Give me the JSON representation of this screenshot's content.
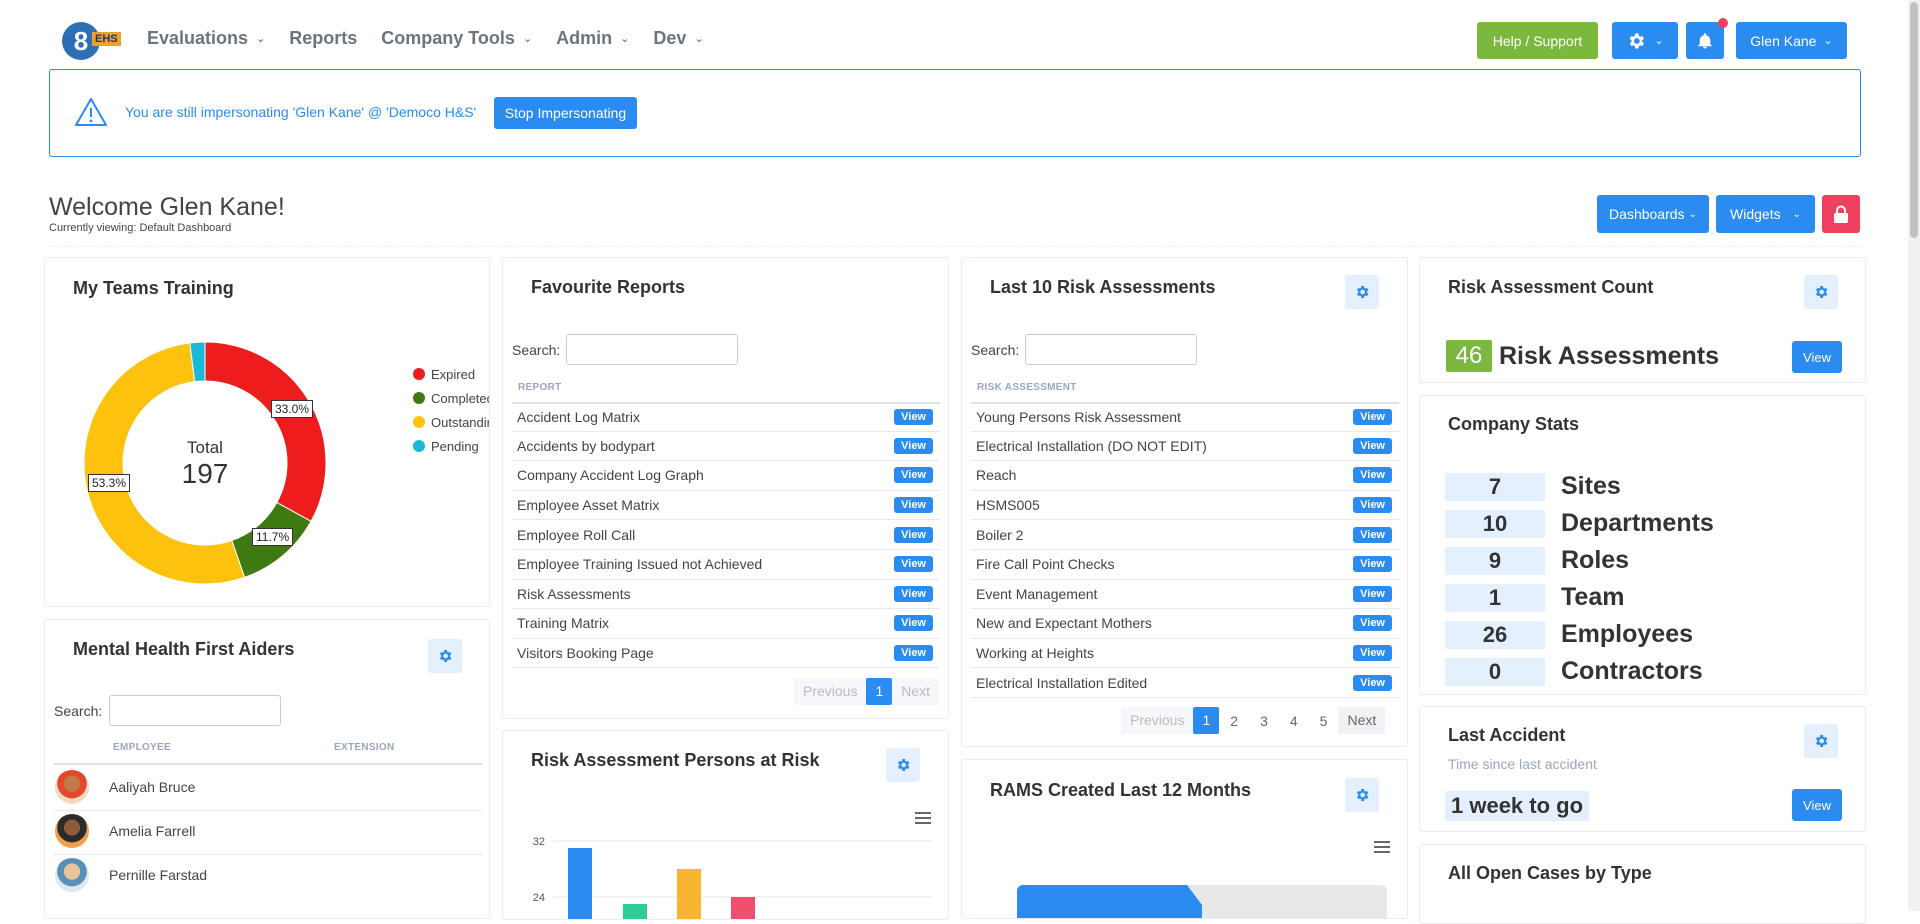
{
  "logo": {
    "number": "8",
    "tag": "EHS"
  },
  "nav": [
    {
      "label": "Evaluations",
      "has_menu": true
    },
    {
      "label": "Reports",
      "has_menu": false
    },
    {
      "label": "Company Tools",
      "has_menu": true
    },
    {
      "label": "Admin",
      "has_menu": true
    },
    {
      "label": "Dev",
      "has_menu": true
    }
  ],
  "header": {
    "help_label": "Help / Support",
    "user_label": "Glen Kane"
  },
  "alert": {
    "message": "You are still impersonating 'Glen Kane' @ 'Democo H&S'",
    "button": "Stop Impersonating"
  },
  "welcome": {
    "title": "Welcome Glen Kane!",
    "viewing": "Currently viewing: Default Dashboard"
  },
  "toolbar": {
    "dashboards": "Dashboards",
    "widgets": "Widgets"
  },
  "teams_training": {
    "title": "My Teams Training",
    "total_label": "Total",
    "total_value": "197",
    "legend": [
      "Expired",
      "Completed",
      "Outstanding",
      "Pending"
    ],
    "colors": [
      "#ee1c1c",
      "#3d7a12",
      "#fcc20d",
      "#1ab9d8"
    ],
    "shares": [
      33.0,
      11.7,
      53.3,
      2.0
    ],
    "labels": [
      "33.0%",
      "11.7%",
      "53.3%"
    ]
  },
  "favourite_reports": {
    "title": "Favourite Reports",
    "search_label": "Search:",
    "column": "REPORT",
    "rows": [
      "Accident Log Matrix",
      "Accidents by bodypart",
      "Company Accident Log Graph",
      "Employee Asset Matrix",
      "Employee Roll Call",
      "Employee Training Issued not Achieved",
      "Risk Assessments",
      "Training Matrix",
      "Visitors Booking Page"
    ],
    "view_label": "View",
    "pager": {
      "prev": "Previous",
      "pages": [
        "1"
      ],
      "next": "Next"
    }
  },
  "last_risk": {
    "title": "Last 10 Risk Assessments",
    "search_label": "Search:",
    "column": "RISK ASSESSMENT",
    "rows": [
      "Young Persons Risk Assessment",
      "Electrical Installation (DO NOT EDIT)",
      "Reach",
      "HSMS005",
      "Boiler 2",
      "Fire Call Point Checks",
      "Event Management",
      "New and Expectant Mothers",
      "Working at Heights",
      "Electrical Installation Edited"
    ],
    "view_label": "View",
    "pager": {
      "prev": "Previous",
      "pages": [
        "1",
        "2",
        "3",
        "4",
        "5"
      ],
      "next": "Next"
    }
  },
  "ra_count": {
    "title": "Risk Assessment Count",
    "count": "46",
    "label": "Risk Assessments",
    "view_label": "View"
  },
  "company_stats": {
    "title": "Company Stats",
    "rows": [
      {
        "value": "7",
        "label": "Sites"
      },
      {
        "value": "10",
        "label": "Departments"
      },
      {
        "value": "9",
        "label": "Roles"
      },
      {
        "value": "1",
        "label": "Team"
      },
      {
        "value": "26",
        "label": "Employees"
      },
      {
        "value": "0",
        "label": "Contractors"
      }
    ]
  },
  "last_accident": {
    "title": "Last Accident",
    "subtitle": "Time since last accident",
    "value": "1 week to go",
    "view_label": "View"
  },
  "open_cases": {
    "title": "All Open Cases by Type"
  },
  "mental_health": {
    "title": "Mental Health First Aiders",
    "search_label": "Search:",
    "columns": [
      "EMPLOYEE",
      "EXTENSION"
    ],
    "people": [
      "Aaliyah Bruce",
      "Amelia Farrell",
      "Pernille Farstad"
    ]
  },
  "persons_at_risk": {
    "title": "Risk Assessment Persons at Risk"
  },
  "rams": {
    "title": "RAMS Created Last 12 Months"
  },
  "chart_data": {
    "type": "bar",
    "title": "Risk Assessment Persons at Risk",
    "yticks": [
      32,
      24
    ],
    "values": [
      31,
      23,
      28,
      24
    ],
    "colors": [
      "#2a8cf0",
      "#2ecc9a",
      "#f7b531",
      "#f0506e"
    ]
  }
}
